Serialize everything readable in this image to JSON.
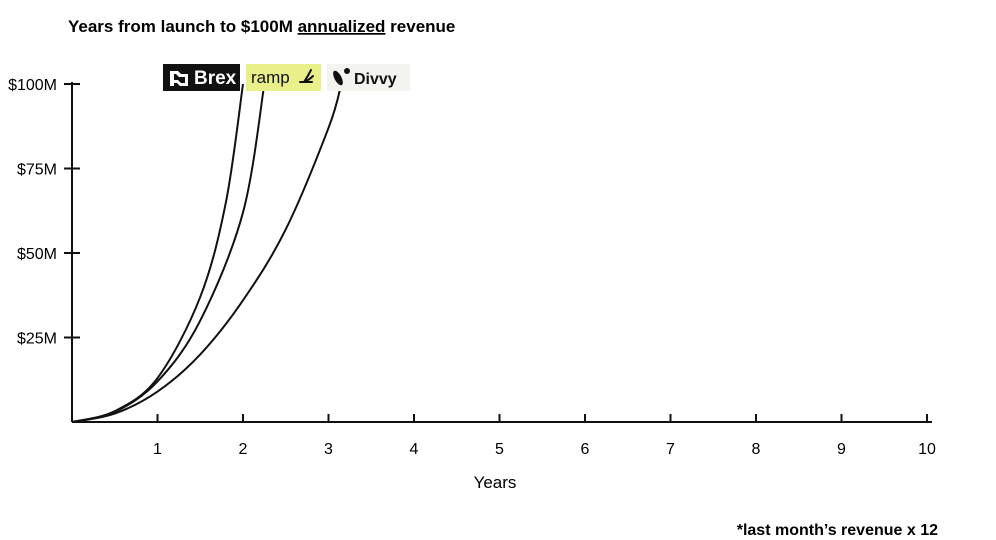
{
  "chart_data": {
    "type": "line",
    "title": {
      "before": "Years from launch to $100M ",
      "underlined": "annualized",
      "after": " revenue"
    },
    "xlabel": "Years",
    "ylabel": "",
    "xlim": [
      0,
      10
    ],
    "ylim": [
      0,
      100
    ],
    "x_ticks": [
      1,
      2,
      3,
      4,
      5,
      6,
      7,
      8,
      9,
      10
    ],
    "y_ticks": [
      {
        "value": 25,
        "label": "$25M"
      },
      {
        "value": 50,
        "label": "$50M"
      },
      {
        "value": 75,
        "label": "$75M"
      },
      {
        "value": 100,
        "label": "$100M"
      }
    ],
    "grid": false,
    "series": [
      {
        "name": "Brex",
        "years_to_100m": 2.0,
        "color": "#111111",
        "points": [
          [
            0,
            0
          ],
          [
            0.5,
            3.2
          ],
          [
            1.0,
            13
          ],
          [
            1.5,
            37
          ],
          [
            1.8,
            65
          ],
          [
            2.0,
            100
          ]
        ]
      },
      {
        "name": "ramp",
        "years_to_100m": 2.25,
        "color": "#111111",
        "points": [
          [
            0,
            0
          ],
          [
            0.5,
            3
          ],
          [
            1.0,
            12
          ],
          [
            1.5,
            30
          ],
          [
            2.0,
            62
          ],
          [
            2.25,
            100
          ]
        ]
      },
      {
        "name": "Divvy",
        "years_to_100m": 3.15,
        "color": "#111111",
        "points": [
          [
            0,
            0
          ],
          [
            0.5,
            2.5
          ],
          [
            1.0,
            9
          ],
          [
            1.5,
            20
          ],
          [
            2.0,
            36
          ],
          [
            2.5,
            57
          ],
          [
            3.0,
            87
          ],
          [
            3.15,
            100
          ]
        ]
      }
    ],
    "logos": [
      {
        "name": "Brex",
        "text": "Brex",
        "style": "dark",
        "bg": "#111111",
        "fg": "#ffffff"
      },
      {
        "name": "ramp",
        "text": "ramp",
        "style": "light",
        "bg": "#e9f08a",
        "fg": "#111111"
      },
      {
        "name": "Divvy",
        "text": "Divvy",
        "style": "plain",
        "bg": "#f3f3ef",
        "fg": "#111111"
      }
    ],
    "footnote": "*last month’s revenue x 12"
  }
}
